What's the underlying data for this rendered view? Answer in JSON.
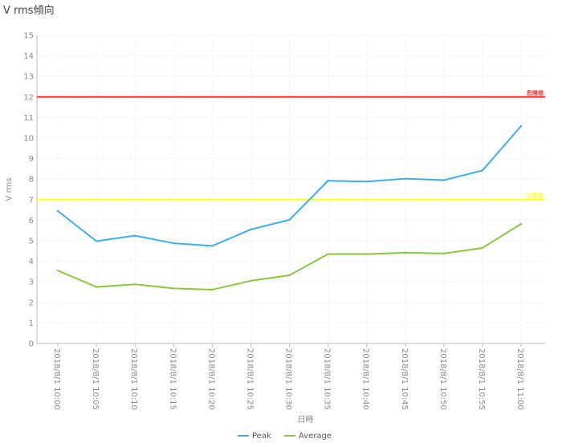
{
  "chart_data": {
    "type": "line",
    "title": "V rms傾向",
    "xlabel": "日時",
    "ylabel": "V rms",
    "ylim": [
      0,
      15
    ],
    "yticks": [
      0,
      1,
      2,
      3,
      4,
      5,
      6,
      7,
      8,
      9,
      10,
      11,
      12,
      13,
      14,
      15
    ],
    "grid": true,
    "legend_position": "bottom",
    "categories": [
      "2018/8/1 10:00",
      "2018/8/1 10:05",
      "2018/8/1 10:10",
      "2018/8/1 10:15",
      "2018/8/1 10:20",
      "2018/8/1 10:25",
      "2018/8/1 10:30",
      "2018/8/1 10:35",
      "2018/8/1 10:40",
      "2018/8/1 10:45",
      "2018/8/1 10:50",
      "2018/8/1 10:55",
      "2018/8/1 11:00"
    ],
    "series": [
      {
        "name": "Peak",
        "color": "#3daee9",
        "values": [
          6.45,
          4.98,
          5.25,
          4.88,
          4.75,
          5.55,
          6.02,
          7.92,
          7.88,
          8.02,
          7.95,
          8.42,
          10.58
        ]
      },
      {
        "name": "Average",
        "color": "#8cc63f",
        "values": [
          3.55,
          2.75,
          2.88,
          2.68,
          2.62,
          3.05,
          3.32,
          4.35,
          4.35,
          4.42,
          4.38,
          4.65,
          5.82
        ]
      }
    ],
    "reference_lines": [
      {
        "value": 12,
        "label": "危険値",
        "color": "#ff3030"
      },
      {
        "value": 7,
        "label": "注意値",
        "color": "#ffff33"
      }
    ]
  }
}
